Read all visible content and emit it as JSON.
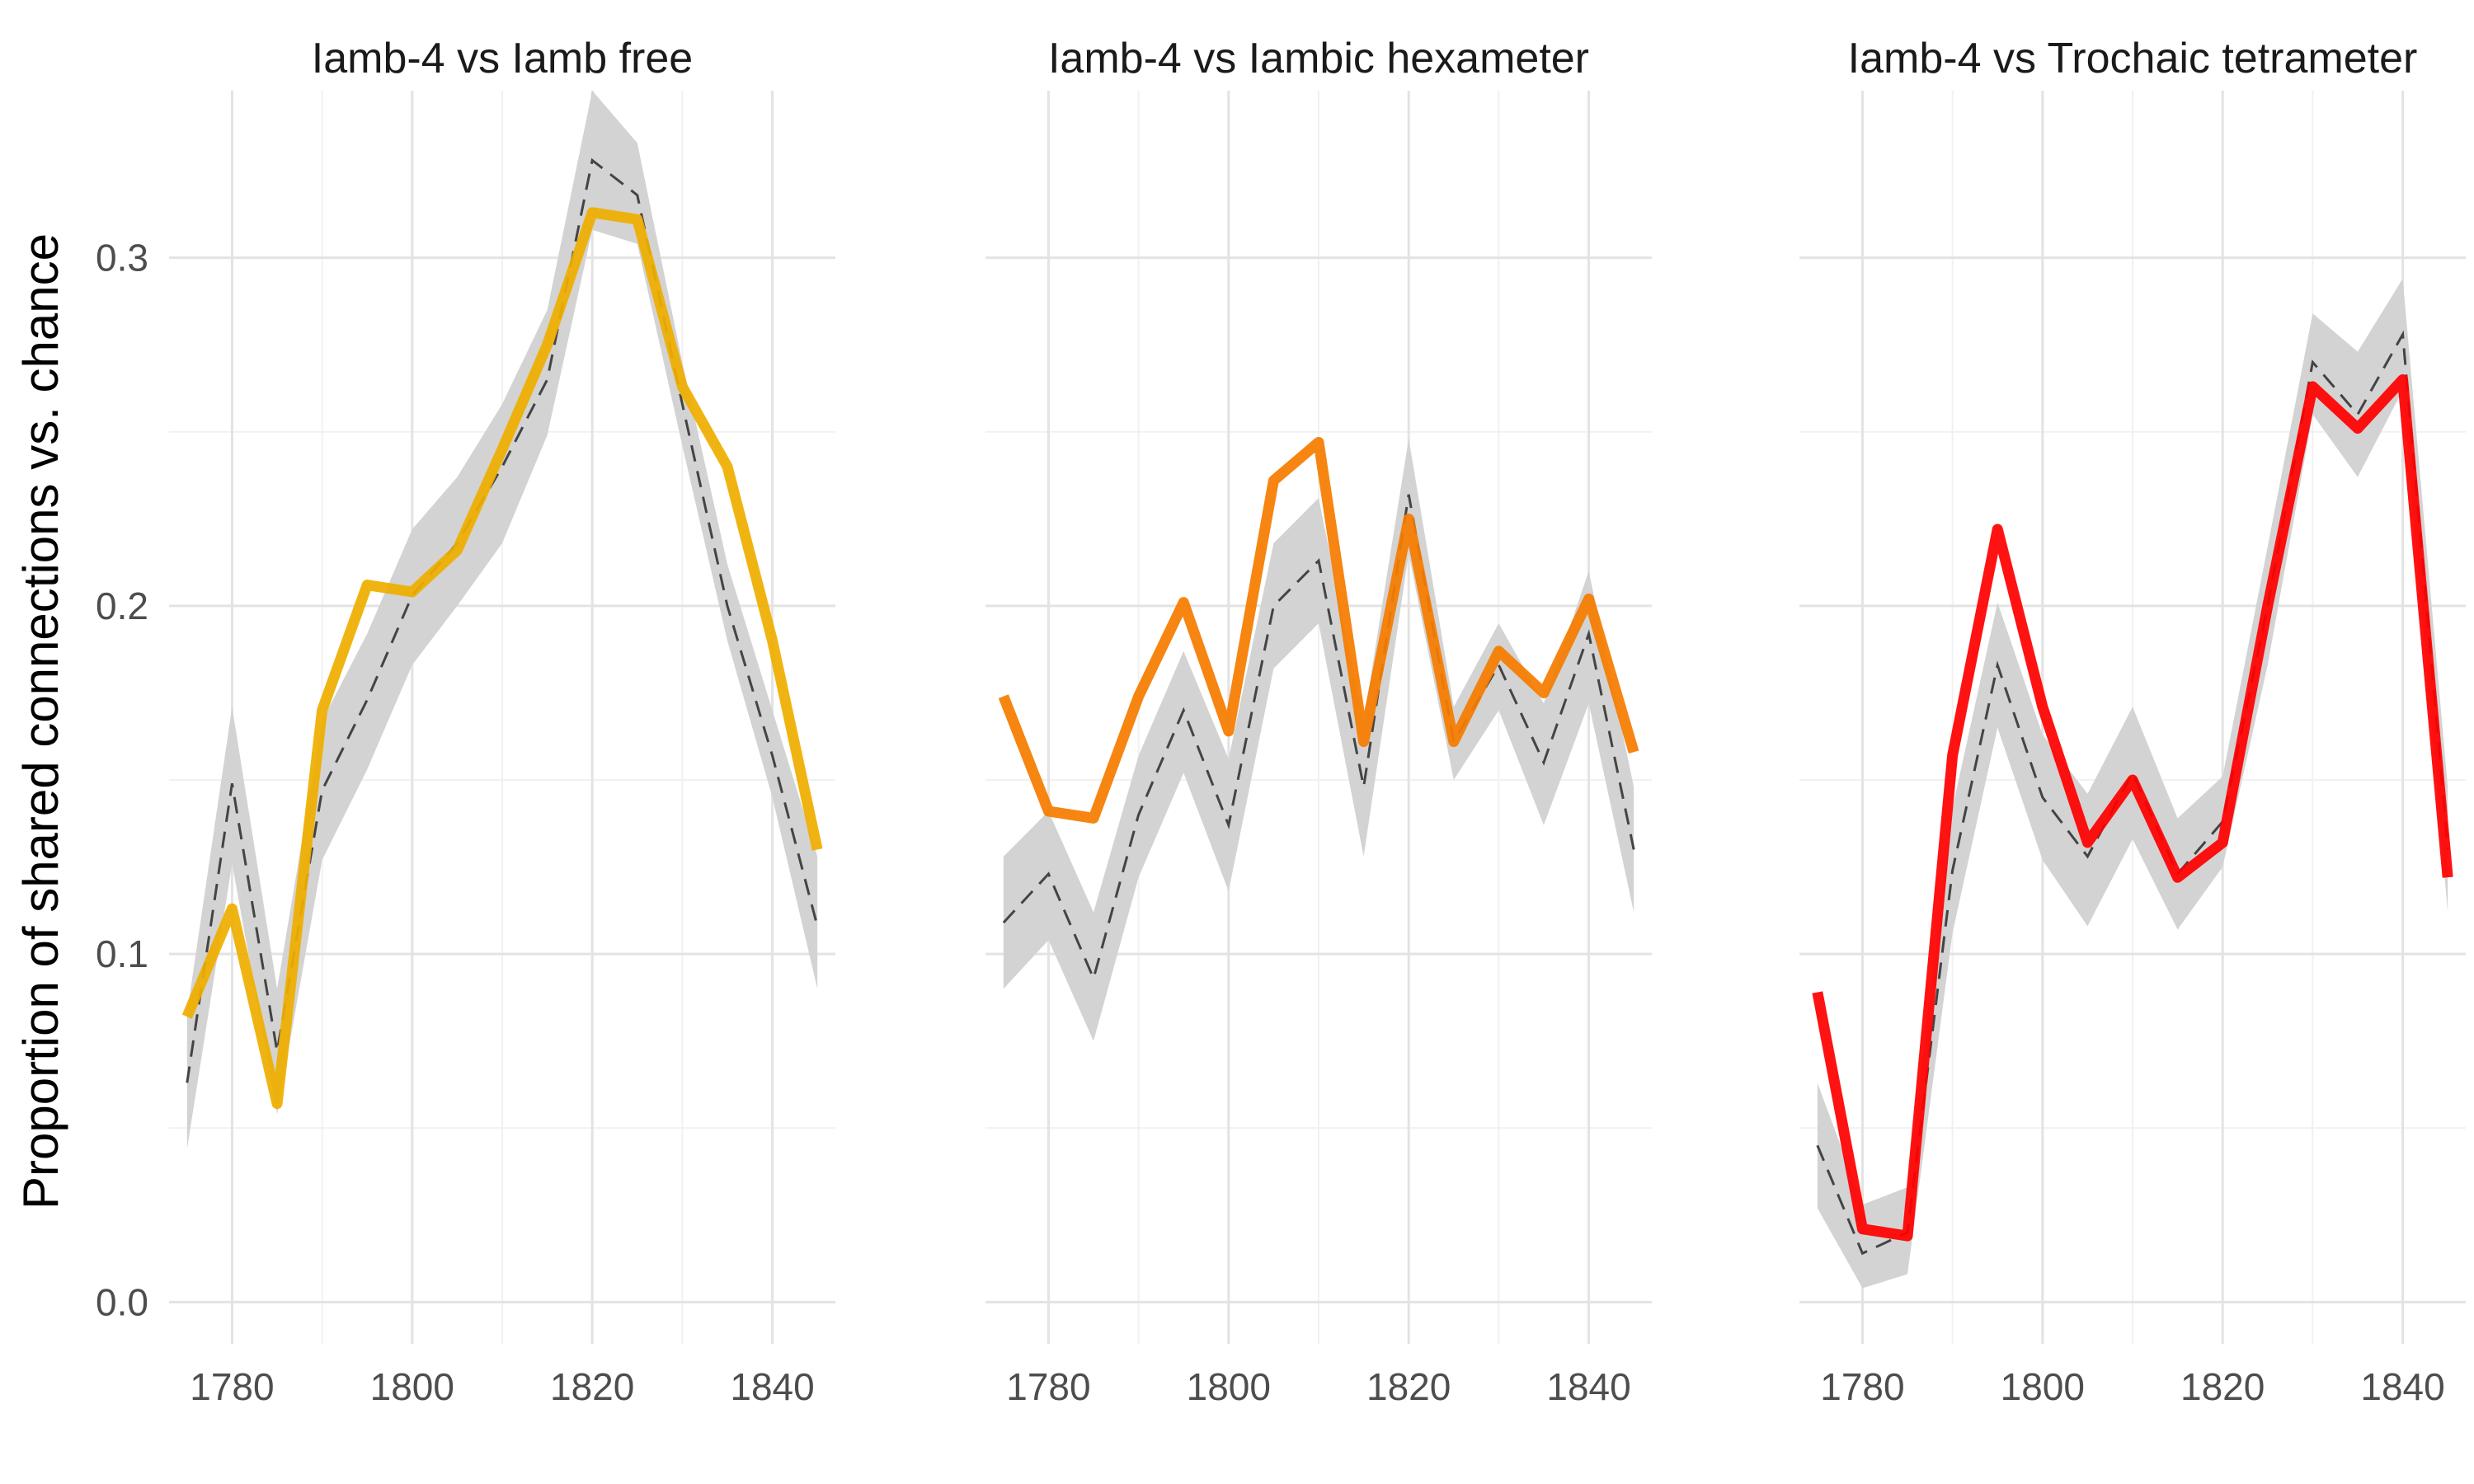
{
  "chart_data": {
    "type": "line",
    "ylabel": "Proportion of shared connections vs. chance",
    "xlabel": "",
    "xlim": [
      1773,
      1847
    ],
    "ylim": [
      -0.012,
      0.348
    ],
    "x_ticks": [
      "1780",
      "1800",
      "1820",
      "1840"
    ],
    "y_ticks": [
      "0.0",
      "0.1",
      "0.2",
      "0.3"
    ],
    "grid": true,
    "legend": "none",
    "panels": [
      {
        "title": "Iamb-4 vs Iamb free",
        "x": [
          1775,
          1780,
          1785,
          1790,
          1795,
          1800,
          1805,
          1810,
          1815,
          1820,
          1825,
          1830,
          1835,
          1840,
          1845
        ],
        "observed": [
          0.082,
          0.113,
          0.057,
          0.17,
          0.206,
          0.204,
          0.216,
          0.245,
          0.275,
          0.313,
          0.311,
          0.263,
          0.24,
          0.19,
          0.13
        ],
        "chance_mean": [
          0.063,
          0.149,
          0.072,
          0.147,
          0.173,
          0.203,
          0.218,
          0.24,
          0.265,
          0.328,
          0.318,
          0.258,
          0.2,
          0.157,
          0.108
        ],
        "chance_low": [
          0.044,
          0.126,
          0.054,
          0.127,
          0.153,
          0.183,
          0.2,
          0.218,
          0.249,
          0.308,
          0.304,
          0.246,
          0.19,
          0.145,
          0.09
        ],
        "chance_high": [
          0.083,
          0.171,
          0.09,
          0.167,
          0.192,
          0.222,
          0.237,
          0.258,
          0.285,
          0.348,
          0.333,
          0.27,
          0.212,
          0.17,
          0.128
        ],
        "color": "#EFAE00"
      },
      {
        "title": "Iamb-4 vs Iambic hexameter",
        "x": [
          1775,
          1780,
          1785,
          1790,
          1795,
          1800,
          1805,
          1810,
          1815,
          1820,
          1825,
          1830,
          1835,
          1840,
          1845
        ],
        "observed": [
          0.174,
          0.141,
          0.139,
          0.174,
          0.201,
          0.164,
          0.236,
          0.247,
          0.161,
          0.225,
          0.161,
          0.187,
          0.175,
          0.202,
          0.158
        ],
        "chance_mean": [
          0.109,
          0.123,
          0.093,
          0.14,
          0.17,
          0.137,
          0.2,
          0.213,
          0.148,
          0.232,
          0.161,
          0.183,
          0.155,
          0.192,
          0.13
        ],
        "chance_low": [
          0.09,
          0.104,
          0.075,
          0.122,
          0.152,
          0.118,
          0.182,
          0.195,
          0.128,
          0.215,
          0.15,
          0.17,
          0.137,
          0.172,
          0.112
        ],
        "chance_high": [
          0.128,
          0.141,
          0.112,
          0.157,
          0.187,
          0.156,
          0.218,
          0.231,
          0.167,
          0.248,
          0.171,
          0.195,
          0.172,
          0.21,
          0.148
        ],
        "color": "#F57C00"
      },
      {
        "title": "Iamb-4 vs Trochaic tetrameter",
        "x": [
          1775,
          1780,
          1785,
          1790,
          1795,
          1800,
          1805,
          1810,
          1815,
          1820,
          1825,
          1830,
          1835,
          1840,
          1845
        ],
        "observed": [
          0.089,
          0.021,
          0.019,
          0.157,
          0.222,
          0.171,
          0.132,
          0.15,
          0.122,
          0.132,
          0.2,
          0.263,
          0.251,
          0.265,
          0.122
        ],
        "chance_mean": [
          0.045,
          0.014,
          0.02,
          0.124,
          0.183,
          0.145,
          0.128,
          0.152,
          0.123,
          0.138,
          0.2,
          0.27,
          0.255,
          0.278,
          0.13
        ],
        "chance_low": [
          0.027,
          0.004,
          0.008,
          0.106,
          0.165,
          0.127,
          0.108,
          0.133,
          0.107,
          0.125,
          0.183,
          0.255,
          0.237,
          0.262,
          0.112
        ],
        "chance_high": [
          0.063,
          0.028,
          0.033,
          0.142,
          0.201,
          0.163,
          0.146,
          0.171,
          0.139,
          0.151,
          0.217,
          0.284,
          0.273,
          0.294,
          0.148
        ],
        "color": "#FF0000"
      }
    ]
  },
  "style": {
    "band_color": "#d3d3d3",
    "chance_line_color": "#444444",
    "grid_major_color": "#e3e3e3",
    "grid_minor_color": "#f1f1f1"
  }
}
